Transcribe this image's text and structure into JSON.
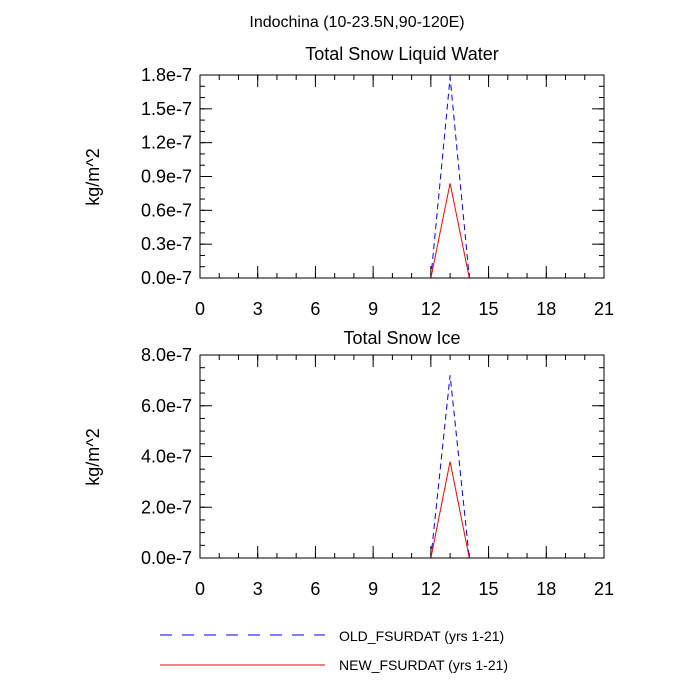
{
  "figure": {
    "title": "Indochina (10-23.5N,90-120E)"
  },
  "legend": {
    "placement": "bottom",
    "entries": [
      {
        "label": "OLD_FSURDAT (yrs 1-21)",
        "color": "#0000ff",
        "dashed": true
      },
      {
        "label": "NEW_FSURDAT (yrs 1-21)",
        "color": "#ff0000",
        "dashed": false
      }
    ]
  },
  "chart_data": [
    {
      "type": "line",
      "title": "Total Snow Liquid Water",
      "xlabel": "",
      "ylabel": "kg/m^2",
      "xlim": [
        0,
        21
      ],
      "ylim": [
        0,
        1.8e-07
      ],
      "xticks": [
        0,
        3,
        6,
        9,
        12,
        15,
        18,
        21
      ],
      "xtick_labels": [
        "0",
        "3",
        "6",
        "9",
        "12",
        "15",
        "18",
        "21"
      ],
      "yticks": [
        0,
        3e-08,
        6e-08,
        9e-08,
        1.2e-07,
        1.5e-07,
        1.8e-07
      ],
      "ytick_labels": [
        "0.0e-7",
        "0.3e-7",
        "0.6e-7",
        "0.9e-7",
        "1.2e-7",
        "1.5e-7",
        "1.8e-7"
      ],
      "x_minor_step": 1,
      "y_minor_step": 1e-08,
      "x": [
        0,
        1,
        2,
        3,
        4,
        5,
        6,
        7,
        8,
        9,
        10,
        11,
        12,
        13,
        14,
        15,
        16,
        17,
        18,
        19,
        20,
        21
      ],
      "series": [
        {
          "name": "OLD_FSURDAT (yrs 1-21)",
          "color": "#0000ff",
          "dashed": true,
          "values": [
            0,
            0,
            0,
            0,
            0,
            0,
            0,
            0,
            0,
            0,
            0,
            0,
            0,
            1.78e-07,
            0,
            0,
            0,
            0,
            0,
            0,
            0,
            0
          ]
        },
        {
          "name": "NEW_FSURDAT (yrs 1-21)",
          "color": "#ff0000",
          "dashed": false,
          "values": [
            0,
            0,
            0,
            0,
            0,
            0,
            0,
            0,
            0,
            0,
            0,
            0,
            0,
            8.4e-08,
            0,
            0,
            0,
            0,
            0,
            0,
            0,
            0
          ]
        }
      ]
    },
    {
      "type": "line",
      "title": "Total Snow Ice",
      "xlabel": "",
      "ylabel": "kg/m^2",
      "xlim": [
        0,
        21
      ],
      "ylim": [
        0,
        8e-07
      ],
      "xticks": [
        0,
        3,
        6,
        9,
        12,
        15,
        18,
        21
      ],
      "xtick_labels": [
        "0",
        "3",
        "6",
        "9",
        "12",
        "15",
        "18",
        "21"
      ],
      "yticks": [
        0,
        2e-07,
        4e-07,
        6e-07,
        8e-07
      ],
      "ytick_labels": [
        "0.0e-7",
        "2.0e-7",
        "4.0e-7",
        "6.0e-7",
        "8.0e-7"
      ],
      "x_minor_step": 1,
      "y_minor_step": 5e-08,
      "x": [
        0,
        1,
        2,
        3,
        4,
        5,
        6,
        7,
        8,
        9,
        10,
        11,
        12,
        13,
        14,
        15,
        16,
        17,
        18,
        19,
        20,
        21
      ],
      "series": [
        {
          "name": "OLD_FSURDAT (yrs 1-21)",
          "color": "#0000ff",
          "dashed": true,
          "values": [
            0,
            0,
            0,
            0,
            0,
            0,
            0,
            0,
            0,
            0,
            0,
            0,
            0,
            7.2e-07,
            0,
            0,
            0,
            0,
            0,
            0,
            0,
            0
          ]
        },
        {
          "name": "NEW_FSURDAT (yrs 1-21)",
          "color": "#ff0000",
          "dashed": false,
          "values": [
            0,
            0,
            0,
            0,
            0,
            0,
            0,
            0,
            0,
            0,
            0,
            0,
            0,
            3.8e-07,
            0,
            0,
            0,
            0,
            0,
            0,
            0,
            0
          ]
        }
      ]
    }
  ]
}
